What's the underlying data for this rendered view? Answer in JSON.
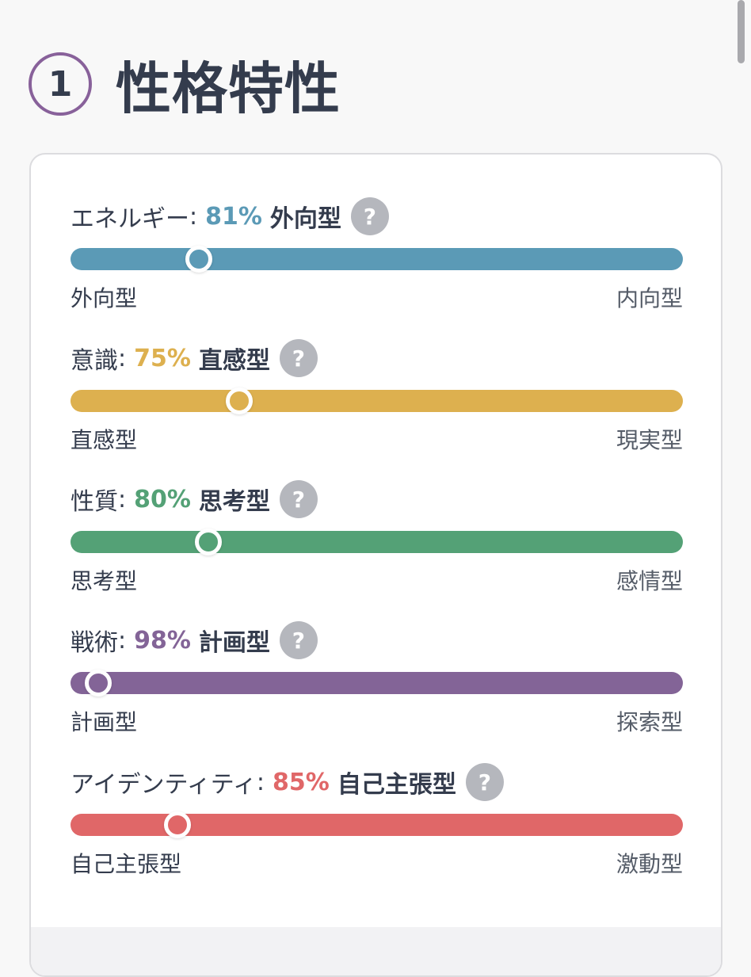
{
  "section": {
    "number": "1",
    "title": "性格特性"
  },
  "traits": [
    {
      "name": "エネルギー",
      "percent": "81%",
      "type": "外向型",
      "left_pole": "外向型",
      "right_pole": "内向型",
      "color": "#5b9ab6",
      "position_fraction": 0.21
    },
    {
      "name": "意識",
      "percent": "75%",
      "type": "直感型",
      "left_pole": "直感型",
      "right_pole": "現実型",
      "color": "#ddb04f",
      "position_fraction": 0.275
    },
    {
      "name": "性質",
      "percent": "80%",
      "type": "思考型",
      "left_pole": "思考型",
      "right_pole": "感情型",
      "color": "#54a176",
      "position_fraction": 0.225
    },
    {
      "name": "戦術",
      "percent": "98%",
      "type": "計画型",
      "left_pole": "計画型",
      "right_pole": "探索型",
      "color": "#836497",
      "position_fraction": 0.045
    },
    {
      "name": "アイデンティティ",
      "percent": "85%",
      "type": "自己主張型",
      "left_pole": "自己主張型",
      "right_pole": "激動型",
      "color": "#e06768",
      "position_fraction": 0.175
    }
  ],
  "help_symbol": "?"
}
